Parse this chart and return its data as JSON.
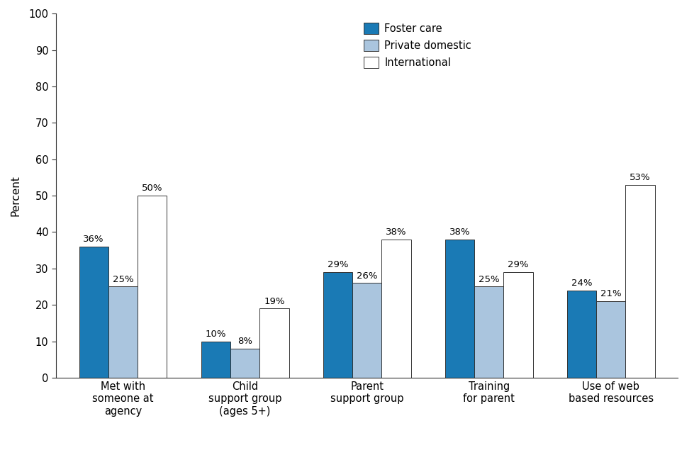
{
  "categories": [
    "Met with\nsomeone at\nagency",
    "Child\nsupport group\n(ages 5+)",
    "Parent\nsupport group",
    "Training\nfor parent",
    "Use of web\nbased resources"
  ],
  "series": {
    "Foster care": [
      36,
      10,
      29,
      38,
      24
    ],
    "Private domestic": [
      25,
      8,
      26,
      25,
      21
    ],
    "International": [
      50,
      19,
      38,
      29,
      53
    ]
  },
  "colors": {
    "Foster care": "#1a7ab5",
    "Private domestic": "#aac5de",
    "International": "#ffffff"
  },
  "bar_edge_color": "#333333",
  "ylabel": "Percent",
  "ylim": [
    0,
    100
  ],
  "yticks": [
    0,
    10,
    20,
    30,
    40,
    50,
    60,
    70,
    80,
    90,
    100
  ],
  "legend_labels": [
    "Foster care",
    "Private domestic",
    "International"
  ],
  "bar_width": 0.24,
  "label_fontsize": 9.5,
  "tick_fontsize": 10.5,
  "ylabel_fontsize": 11,
  "legend_fontsize": 10.5,
  "background_color": "#ffffff"
}
